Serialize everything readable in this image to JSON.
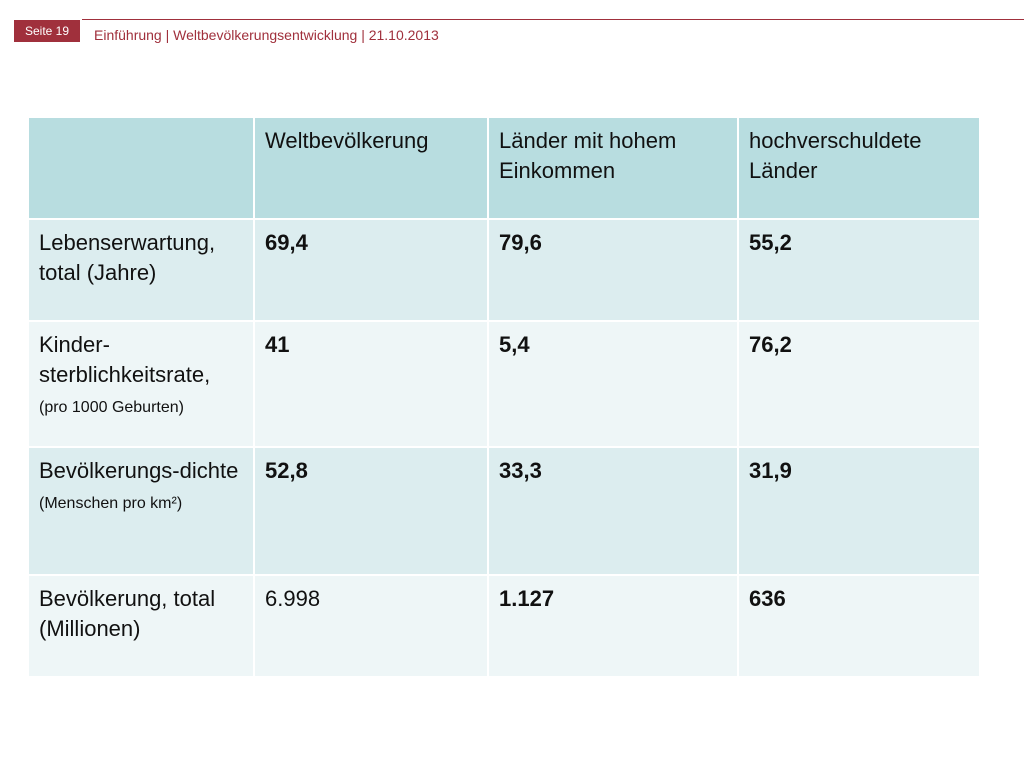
{
  "header": {
    "page_badge": "Seite 19",
    "breadcrumb": "Einführung | Weltbevölkerungsentwicklung | 21.10.2013"
  },
  "table": {
    "columns": [
      "",
      "Weltbevölkerung",
      "Länder mit hohem Einkommen",
      "hochverschuldete Länder"
    ],
    "rows": [
      {
        "label_main": "Lebenserwartung, total (Jahre)",
        "label_small": "",
        "values": [
          "69,4",
          "79,6",
          "55,2"
        ]
      },
      {
        "label_main": "Kinder-sterblichkeitsrate,",
        "label_small": "(pro 1000 Geburten)",
        "values": [
          "41",
          "5,4",
          "76,2"
        ]
      },
      {
        "label_main": "Bevölkerungs-dichte",
        "label_small": "(Menschen pro km²)",
        "values": [
          "52,8",
          "33,3",
          "31,9"
        ]
      },
      {
        "label_main": "Bevölkerung, total (Millionen)",
        "label_small": "",
        "values": [
          "6.998",
          "1.127",
          "636"
        ]
      }
    ]
  },
  "colors": {
    "accent": "#a0303c",
    "header_bg": "#b8dde0",
    "row_dark": "#dcedef",
    "row_light": "#eef6f7"
  }
}
